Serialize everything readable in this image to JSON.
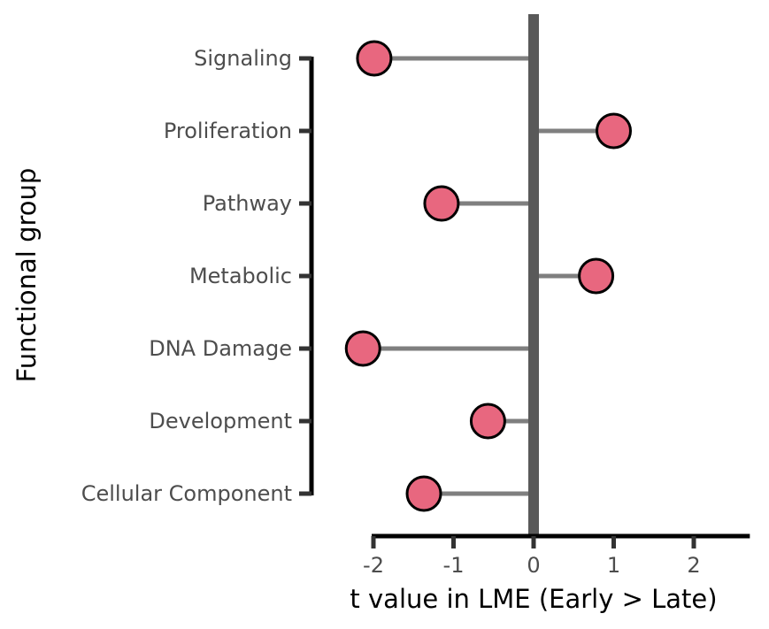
{
  "chart_data": {
    "type": "lollipop",
    "title": "",
    "xlabel": "t value in LME (Early > Late)",
    "ylabel": "Functional group",
    "categories": [
      "Signaling",
      "Proliferation",
      "Pathway",
      "Metabolic",
      "DNA Damage",
      "Development",
      "Cellular Component"
    ],
    "values": [
      -1.99,
      1.0,
      -1.15,
      0.78,
      -2.13,
      -0.57,
      -1.37
    ],
    "x_ticks": [
      -2,
      -1,
      0,
      1,
      2
    ],
    "x_tick_labels": [
      "-2",
      "-1",
      "0",
      "1",
      "2"
    ],
    "xlim": [
      -2.5,
      2.7
    ],
    "reference_line": 0,
    "grid": false,
    "legend": "none",
    "colors": {
      "point_fill": "#e8677f",
      "point_stroke": "#000000",
      "stem": "#7f7f7f",
      "reference_line": "#595959",
      "axis": "#000000"
    }
  }
}
